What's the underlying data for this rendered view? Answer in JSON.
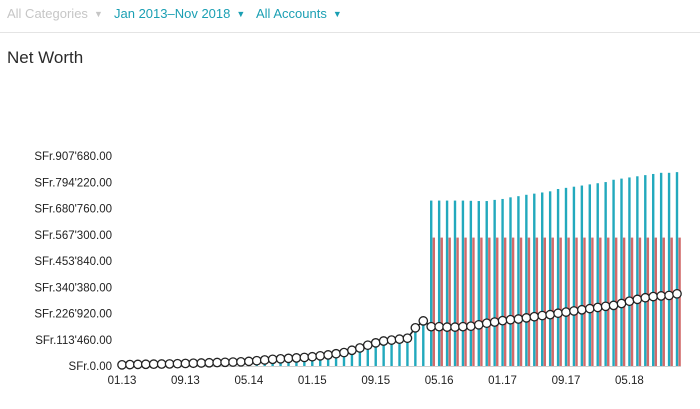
{
  "filters": {
    "categories": {
      "label": "All Categories",
      "enabled": false
    },
    "date_range": {
      "label": "Jan 2013–Nov 2018",
      "enabled": true
    },
    "accounts": {
      "label": "All Accounts",
      "enabled": true
    }
  },
  "page_title": "Net Worth",
  "icons": {
    "dropdown": "caret-down-icon"
  },
  "colors": {
    "accent": "#1a9fb3",
    "assets_bar": "#22a9bd",
    "liabilities_bar": "#d26a6a",
    "net_line": "#222222",
    "marker_fill": "#ffffff"
  },
  "chart_data": {
    "type": "bar+line",
    "title": "",
    "xlabel": "",
    "ylabel": "",
    "y_ticks": [
      "SFr.0.00",
      "SFr.113'460.00",
      "SFr.226'920.00",
      "SFr.340'380.00",
      "SFr.453'840.00",
      "SFr.567'300.00",
      "SFr.680'760.00",
      "SFr.794'220.00",
      "SFr.907'680.00"
    ],
    "ylim": [
      0,
      907680
    ],
    "x_ticks": [
      "01.13",
      "09.13",
      "05.14",
      "01.15",
      "09.15",
      "05.16",
      "01.17",
      "09.17",
      "05.18"
    ],
    "x_tick_months": [
      0,
      8,
      16,
      24,
      32,
      40,
      48,
      56,
      64
    ],
    "months": 71,
    "grid": false,
    "series": [
      {
        "kind": "assets_bars",
        "values": [
          8000,
          9000,
          10000,
          11000,
          12000,
          13000,
          14000,
          15000,
          16000,
          17000,
          18000,
          19000,
          20000,
          21000,
          22000,
          23000,
          25000,
          27000,
          29000,
          31000,
          33000,
          35000,
          37000,
          39000,
          42000,
          46000,
          50000,
          55000,
          60000,
          70000,
          80000,
          95000,
          105000,
          115000,
          120000,
          125000,
          130000,
          180000,
          200000,
          715000,
          715000,
          715000,
          715000,
          715000,
          714000,
          713000,
          713000,
          718000,
          722000,
          729000,
          734000,
          740000,
          745000,
          750000,
          755000,
          765000,
          770000,
          775000,
          780000,
          785000,
          790000,
          795000,
          805000,
          810000,
          815000,
          820000,
          825000,
          830000,
          835000,
          835000,
          838000
        ]
      },
      {
        "kind": "liabilities_bars",
        "values": [
          0,
          0,
          0,
          0,
          0,
          0,
          0,
          0,
          0,
          0,
          0,
          0,
          0,
          0,
          0,
          0,
          0,
          0,
          0,
          0,
          0,
          0,
          0,
          0,
          0,
          0,
          0,
          0,
          0,
          0,
          0,
          0,
          0,
          0,
          0,
          0,
          0,
          0,
          0,
          555000,
          555000,
          555000,
          555000,
          555000,
          555000,
          555000,
          555000,
          555000,
          555000,
          555000,
          555000,
          555000,
          555000,
          555000,
          555000,
          555000,
          555000,
          555000,
          555000,
          555000,
          555000,
          555000,
          555000,
          555000,
          555000,
          555000,
          555000,
          555000,
          555000,
          555000,
          555000
        ]
      },
      {
        "kind": "net_worth_line",
        "values": [
          5000,
          6000,
          7000,
          7500,
          8000,
          8500,
          9000,
          10000,
          11000,
          12000,
          13000,
          14000,
          15000,
          16000,
          17000,
          18000,
          20000,
          23000,
          26000,
          29000,
          31000,
          33000,
          35000,
          37000,
          40000,
          44000,
          48000,
          53000,
          58000,
          68000,
          78000,
          90000,
          100000,
          108000,
          112000,
          116000,
          120000,
          165000,
          195000,
          170000,
          170000,
          168000,
          168000,
          170000,
          172000,
          178000,
          185000,
          190000,
          196000,
          200000,
          203000,
          208000,
          213000,
          218000,
          222000,
          228000,
          233000,
          238000,
          243000,
          248000,
          253000,
          258000,
          262000,
          270000,
          280000,
          288000,
          295000,
          300000,
          303000,
          305000,
          312000
        ]
      }
    ]
  }
}
